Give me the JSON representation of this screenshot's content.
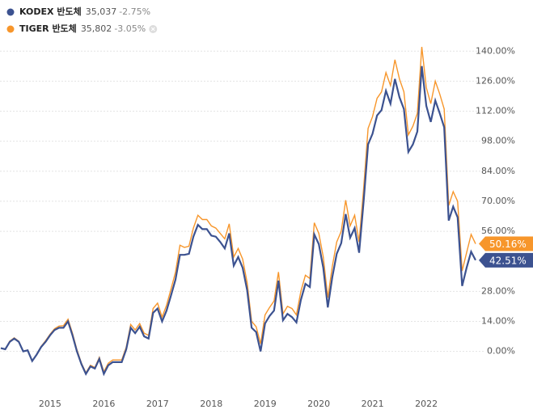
{
  "chart_data": {
    "type": "line",
    "categories": [
      null,
      null,
      null,
      null,
      null,
      null,
      null,
      null,
      null,
      null,
      null,
      "2015",
      null,
      null,
      null,
      null,
      null,
      null,
      null,
      null,
      null,
      null,
      null,
      "2016",
      null,
      null,
      null,
      null,
      null,
      null,
      null,
      null,
      null,
      null,
      null,
      "2017",
      null,
      null,
      null,
      null,
      null,
      null,
      null,
      null,
      null,
      null,
      null,
      "2018",
      null,
      null,
      null,
      null,
      null,
      null,
      null,
      null,
      null,
      null,
      null,
      "2019",
      null,
      null,
      null,
      null,
      null,
      null,
      null,
      null,
      null,
      null,
      null,
      "2020",
      null,
      null,
      null,
      null,
      null,
      null,
      null,
      null,
      null,
      null,
      null,
      "2021",
      null,
      null,
      null,
      null,
      null,
      null,
      null,
      null,
      null,
      null,
      null,
      "2022",
      null,
      null,
      null,
      null,
      null,
      null,
      null,
      null,
      null,
      null,
      null
    ],
    "series": [
      {
        "name": "KODEX 반도체",
        "price": "35,037",
        "change": "-2.75%",
        "color": "#3c5290",
        "end_label": "42.51%",
        "values": [
          1.5,
          1,
          4.5,
          6,
          4.5,
          0,
          0.5,
          -4.5,
          -1.5,
          2,
          4.5,
          7.5,
          10,
          11,
          11,
          14,
          7.5,
          0,
          -6,
          -10.5,
          -7,
          -8,
          -3.5,
          -10.5,
          -6.5,
          -5,
          -5,
          -5,
          1,
          11,
          8.5,
          11.5,
          7,
          6,
          18,
          20,
          14,
          19,
          26,
          33.5,
          45,
          45,
          45.5,
          53.5,
          59,
          57,
          57,
          54,
          53.5,
          51,
          48,
          55,
          40,
          44,
          39,
          28.5,
          11,
          9,
          0,
          13,
          16.5,
          19,
          33,
          14.5,
          17.5,
          16,
          13.5,
          24,
          31.5,
          30,
          54.5,
          50,
          39,
          20.5,
          34.5,
          45.5,
          50.5,
          64,
          53,
          57.5,
          46,
          70,
          96.5,
          101.5,
          110,
          112.5,
          121.5,
          115.5,
          127,
          118.5,
          113,
          93,
          96.5,
          102.5,
          133,
          114.5,
          107,
          117,
          111,
          104.5,
          61,
          67.5,
          62.5,
          30.5,
          39,
          46.5,
          42.51
        ]
      },
      {
        "name": "TIGER 반도체",
        "price": "35,802",
        "change": "-3.05%",
        "color": "#f7962b",
        "end_label": "50.16%",
        "values": [
          1.5,
          1,
          4.8,
          6.3,
          4.7,
          0,
          0.6,
          -4.5,
          -1.3,
          2.3,
          5,
          8,
          10.6,
          11.8,
          12,
          15,
          8.5,
          0.8,
          -5.5,
          -10,
          -6.5,
          -7.5,
          -2.8,
          -9.5,
          -5.5,
          -4,
          -4,
          -4,
          2,
          12.5,
          10,
          13,
          8.5,
          7.5,
          20,
          22.5,
          16,
          21.5,
          29,
          37,
          49.5,
          48.5,
          49,
          57.5,
          63.5,
          61.5,
          61.5,
          58.5,
          57.5,
          55,
          52.5,
          59.5,
          44,
          48,
          43,
          32,
          14,
          11.5,
          3.5,
          17,
          20.5,
          23.5,
          37,
          17.5,
          21,
          20,
          17,
          28,
          35.5,
          34,
          60,
          55,
          44,
          25,
          39.5,
          51,
          56,
          70.5,
          58.5,
          63.5,
          51,
          76,
          104,
          109.5,
          118,
          121,
          130,
          124,
          136,
          127,
          121,
          101,
          105,
          111,
          142,
          123,
          115.5,
          126,
          120,
          113,
          68,
          74.5,
          70,
          37.5,
          46,
          54.5,
          50.16
        ]
      }
    ],
    "ylim": [
      -19,
      145
    ],
    "yticks": [
      {
        "value": 0,
        "label": "0.00%"
      },
      {
        "value": 14,
        "label": "14.00%"
      },
      {
        "value": 28,
        "label": "28.00%"
      },
      {
        "value": 56,
        "label": "56.00%"
      },
      {
        "value": 70,
        "label": "70.00%"
      },
      {
        "value": 84,
        "label": "84.00%"
      },
      {
        "value": 98,
        "label": "98.00%"
      },
      {
        "value": 112,
        "label": "112.00%"
      },
      {
        "value": 126,
        "label": "126.00%"
      },
      {
        "value": 140,
        "label": "140.00%"
      }
    ],
    "grid": true
  }
}
